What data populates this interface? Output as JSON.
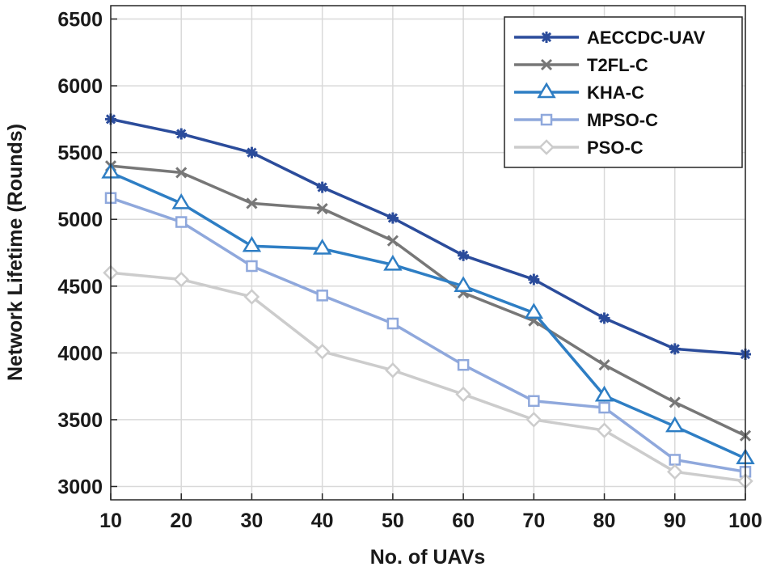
{
  "chart_data": {
    "type": "line",
    "title": "",
    "xlabel": "No. of UAVs",
    "ylabel": "Network Lifetime (Rounds)",
    "x": [
      10,
      20,
      30,
      40,
      50,
      60,
      70,
      80,
      90,
      100
    ],
    "xlim": [
      10,
      100
    ],
    "ylim": [
      2900,
      6600
    ],
    "xticks": [
      10,
      20,
      30,
      40,
      50,
      60,
      70,
      80,
      90,
      100
    ],
    "yticks": [
      3000,
      3500,
      4000,
      4500,
      5000,
      5500,
      6000,
      6500
    ],
    "grid": true,
    "legend_position": "top-right",
    "series": [
      {
        "name": "AECCDC-UAV",
        "color": "#2b4c9b",
        "marker": "asterisk",
        "values": [
          5750,
          5640,
          5500,
          5240,
          5010,
          4730,
          4550,
          4260,
          4030,
          3990
        ]
      },
      {
        "name": "T2FL-C",
        "color": "#777777",
        "marker": "x",
        "values": [
          5400,
          5350,
          5120,
          5080,
          4840,
          4450,
          4240,
          3910,
          3630,
          3380
        ]
      },
      {
        "name": "KHA-C",
        "color": "#2e7ec4",
        "marker": "triangle",
        "values": [
          5350,
          5120,
          4800,
          4780,
          4660,
          4500,
          4300,
          3680,
          3450,
          3210
        ]
      },
      {
        "name": "MPSO-C",
        "color": "#8fa8dc",
        "marker": "square",
        "values": [
          5160,
          4980,
          4650,
          4430,
          4220,
          3910,
          3640,
          3590,
          3200,
          3110
        ]
      },
      {
        "name": "PSO-C",
        "color": "#cccccc",
        "marker": "diamond",
        "values": [
          4600,
          4550,
          4420,
          4010,
          3870,
          3690,
          3500,
          3420,
          3110,
          3040
        ]
      }
    ]
  }
}
